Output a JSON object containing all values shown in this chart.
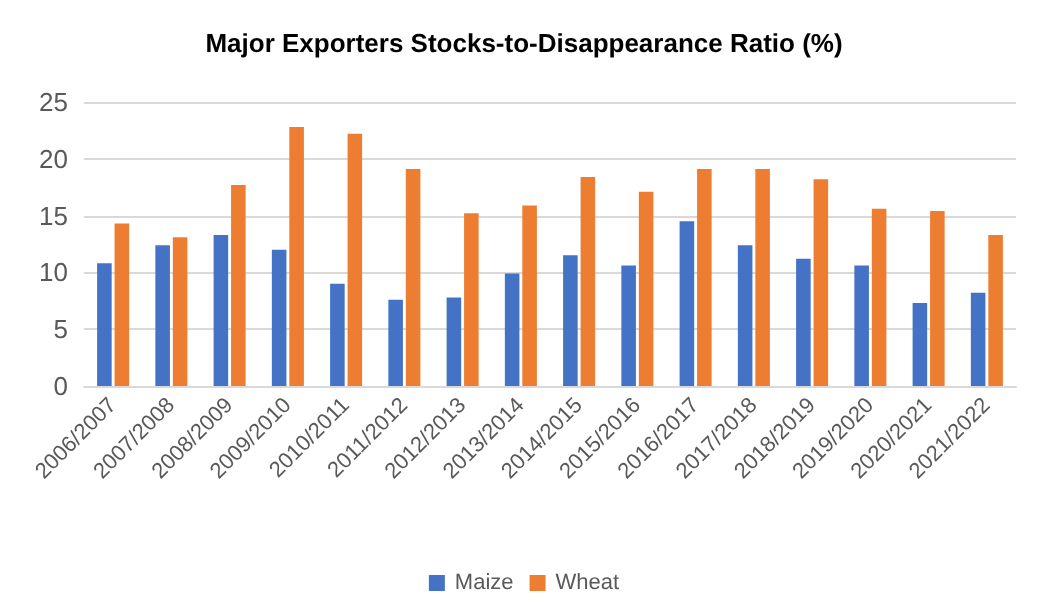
{
  "chart_data": {
    "type": "bar",
    "title": "Major Exporters Stocks-to-Disappearance Ratio (%)",
    "categories": [
      "2006/2007",
      "2007/2008",
      "2008/2009",
      "2009/2010",
      "2010/2011",
      "2011/2012",
      "2012/2013",
      "2013/2014",
      "2014/2015",
      "2015/2016",
      "2016/2017",
      "2017/2018",
      "2018/2019",
      "2019/2020",
      "2020/2021",
      "2021/2022"
    ],
    "series": [
      {
        "name": "Maize",
        "color": "#4472c4",
        "values": [
          10.8,
          12.4,
          13.3,
          12.0,
          9.0,
          7.6,
          7.8,
          9.9,
          11.5,
          10.6,
          14.5,
          12.4,
          11.2,
          10.6,
          7.3,
          8.2
        ]
      },
      {
        "name": "Wheat",
        "color": "#ed7d31",
        "values": [
          14.3,
          13.1,
          17.7,
          22.8,
          22.2,
          19.1,
          15.2,
          15.9,
          18.4,
          17.1,
          19.1,
          19.1,
          18.2,
          15.6,
          15.4,
          13.3
        ]
      }
    ],
    "ylim": [
      0,
      25
    ],
    "yticks": [
      0,
      5,
      10,
      15,
      20,
      25
    ],
    "grid": "y",
    "legend": "bottom"
  }
}
